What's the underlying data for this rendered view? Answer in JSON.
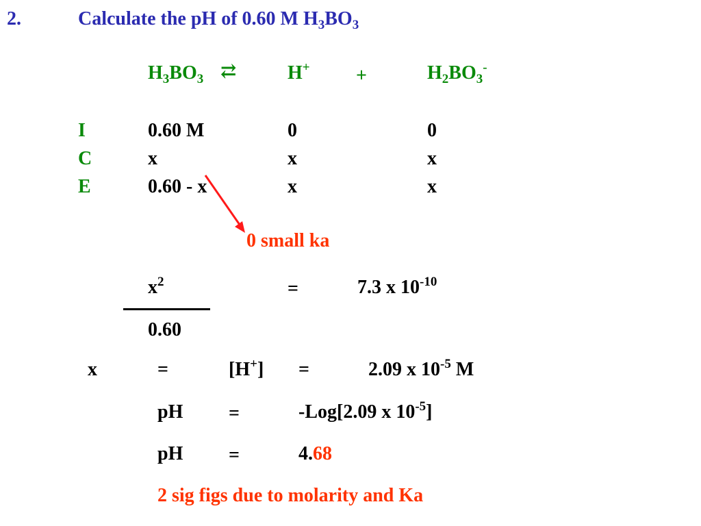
{
  "header": {
    "number": "2.",
    "text": "Calculate the pH of  0.60 M H",
    "sub1": "3",
    "mid": "BO",
    "sub2": "3"
  },
  "equation": {
    "reactant": {
      "a": "H",
      "s1": "3",
      "b": "BO",
      "s2": "3"
    },
    "arrow": "⇄",
    "product1": {
      "a": "H",
      "sup": "+"
    },
    "plus": "+",
    "product2": {
      "a": "H",
      "s1": "2",
      "b": "BO",
      "s2": "3",
      "sup": "-"
    }
  },
  "ice": {
    "rows": [
      {
        "label": "I",
        "reactant": "0.60 M",
        "p1": "0",
        "p2": "0"
      },
      {
        "label": "C",
        "reactant": "x",
        "p1": "x",
        "p2": "x"
      },
      {
        "label": "E",
        "reactant": "0.60 - x",
        "p1": "x",
        "p2": "x"
      }
    ]
  },
  "annotation": "0 small ka",
  "ka_expression": {
    "numerator": "x",
    "num_sup": "2",
    "denominator": "0.60",
    "equals": "=",
    "value": "7.3  x  10",
    "value_sup": "-10"
  },
  "solve": {
    "x": "x",
    "eq1": "=",
    "h": "[H",
    "h_sup": "+",
    "h_close": "]",
    "eq2": "=",
    "value": "2.09  x  10",
    "value_sup": "-5",
    "unit": " M"
  },
  "ph1": {
    "label": "pH",
    "eq": "=",
    "expr": "-Log[2.09  x  10",
    "sup": "-5",
    "close": "]"
  },
  "ph2": {
    "label": "pH",
    "eq": "=",
    "int": "4.",
    "dec": "68"
  },
  "note": "2 sig figs due to molarity and Ka",
  "colors": {
    "title": "#2b2bb0",
    "equation": "#0a8a0a",
    "highlight": "#ff3300",
    "text": "#000000"
  }
}
